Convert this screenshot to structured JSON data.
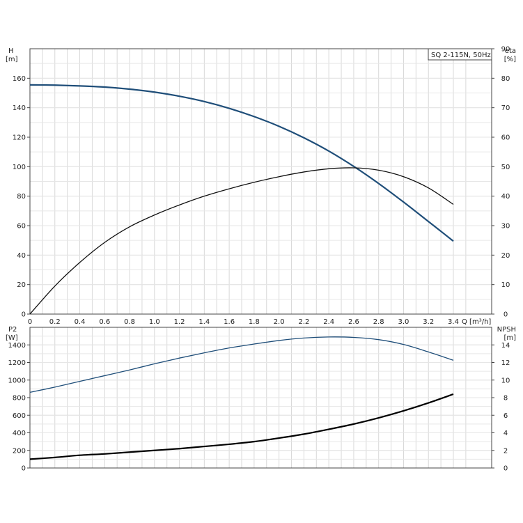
{
  "chart_data": [
    {
      "type": "line",
      "legend": "SQ 2-115N, 50Hz",
      "xlabel": "Q [m³/h]",
      "xlim": [
        0,
        3.6
      ],
      "xticks": [
        "0",
        "0.2",
        "0.4",
        "0.6",
        "0.8",
        "1.0",
        "1.2",
        "1.4",
        "1.6",
        "1.8",
        "2.0",
        "2.2",
        "2.4",
        "2.6",
        "2.8",
        "3.0",
        "3.2",
        "3.4"
      ],
      "left_axis": {
        "label_line1": "H",
        "label_line2": "[m]",
        "ylim": [
          0,
          180
        ],
        "ticks": [
          "0",
          "20",
          "40",
          "60",
          "80",
          "100",
          "120",
          "140",
          "160"
        ]
      },
      "right_axis": {
        "label_line1": "eta",
        "label_line2": "[%]",
        "ylim": [
          0,
          90
        ],
        "ticks": [
          "0",
          "10",
          "20",
          "30",
          "40",
          "50",
          "60",
          "70",
          "80",
          "90"
        ]
      },
      "grid": true,
      "series": [
        {
          "axis": "left",
          "color": "#1f4e79",
          "x": [
            0,
            0.2,
            0.4,
            0.6,
            0.8,
            1.0,
            1.2,
            1.4,
            1.6,
            1.8,
            2.0,
            2.2,
            2.4,
            2.6,
            2.8,
            3.0,
            3.2,
            3.4
          ],
          "values": [
            155.5,
            155.3,
            154.8,
            154,
            152.6,
            150.6,
            147.8,
            144.2,
            139.6,
            134,
            127.4,
            119.6,
            110.6,
            100.2,
            88.6,
            76,
            62.8,
            49.5
          ]
        },
        {
          "axis": "right",
          "color": "#111111",
          "x": [
            0,
            0.2,
            0.4,
            0.6,
            0.8,
            1.0,
            1.2,
            1.4,
            1.6,
            1.8,
            2.0,
            2.2,
            2.4,
            2.6,
            2.8,
            3.0,
            3.2,
            3.4
          ],
          "values": [
            0,
            9.5,
            17.5,
            24.3,
            29.6,
            33.6,
            37,
            40,
            42.5,
            44.7,
            46.6,
            48.2,
            49.3,
            49.6,
            48.8,
            46.6,
            42.8,
            37.2
          ]
        }
      ]
    },
    {
      "type": "line",
      "xlim": [
        0,
        3.6
      ],
      "left_axis": {
        "label_line1": "P2",
        "label_line2": "[W]",
        "ylim": [
          0,
          1600
        ],
        "ticks": [
          "0",
          "200",
          "400",
          "600",
          "800",
          "1000",
          "1200",
          "1400"
        ]
      },
      "right_axis": {
        "label_line1": "NPSH",
        "label_line2": "[m]",
        "ylim": [
          0,
          16
        ],
        "ticks": [
          "0",
          "2",
          "4",
          "6",
          "8",
          "10",
          "12",
          "14"
        ]
      },
      "grid": true,
      "series": [
        {
          "axis": "left",
          "color": "#1f4e79",
          "x": [
            0,
            0.2,
            0.4,
            0.6,
            0.8,
            1.0,
            1.2,
            1.4,
            1.6,
            1.8,
            2.0,
            2.2,
            2.4,
            2.6,
            2.8,
            3.0,
            3.2,
            3.4
          ],
          "values": [
            860,
            920,
            985,
            1050,
            1115,
            1185,
            1250,
            1310,
            1365,
            1410,
            1450,
            1478,
            1490,
            1485,
            1460,
            1405,
            1320,
            1225
          ]
        },
        {
          "axis": "right",
          "color": "#000000",
          "x": [
            0,
            0.2,
            0.4,
            0.6,
            0.8,
            1.0,
            1.2,
            1.4,
            1.6,
            1.8,
            2.0,
            2.2,
            2.4,
            2.6,
            2.8,
            3.0,
            3.2,
            3.4
          ],
          "values": [
            1.0,
            1.2,
            1.45,
            1.6,
            1.8,
            2.0,
            2.2,
            2.45,
            2.7,
            3.0,
            3.4,
            3.85,
            4.4,
            5.0,
            5.7,
            6.5,
            7.4,
            8.4
          ]
        }
      ]
    }
  ]
}
